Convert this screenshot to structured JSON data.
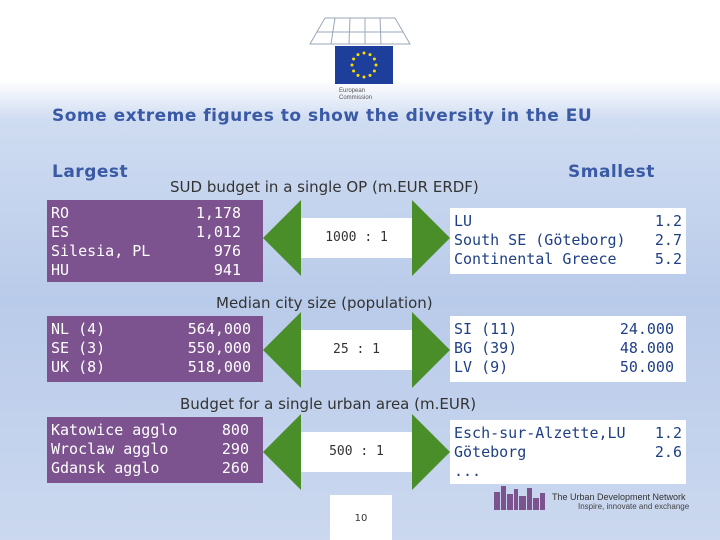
{
  "logo": {
    "text_line1": "European",
    "text_line2": "Commission",
    "flag_color": "#1d3e9b",
    "star_color": "#ffdd00"
  },
  "title": "Some extreme figures to show the diversity in the EU",
  "headings": {
    "largest": "Largest",
    "smallest": "Smallest"
  },
  "sections": [
    {
      "title": "SUD budget in a single OP (m.EUR ERDF)",
      "ratio": "1000 : 1",
      "largest": {
        "names": [
          "RO",
          "ES",
          "Silesia, PL",
          "HU"
        ],
        "values": [
          "1,178",
          "1,012",
          "976",
          "941"
        ]
      },
      "smallest": {
        "rows": [
          [
            "LU",
            "1.2"
          ],
          [
            "South SE (Göteborg)",
            "2.7"
          ],
          [
            "Continental Greece",
            "5.2"
          ]
        ]
      }
    },
    {
      "title": "Median city size (population)",
      "ratio": "25 : 1",
      "largest": {
        "names": [
          "NL (4)",
          "SE (3)",
          "UK (8)"
        ],
        "values": [
          "564,000",
          "550,000",
          "518,000"
        ]
      },
      "smallest": {
        "names": [
          "SI (11)",
          "BG (39)",
          "LV (9)"
        ],
        "values": [
          "24.000",
          "48.000",
          "50.000"
        ]
      }
    },
    {
      "title": "Budget for a single urban area (m.EUR)",
      "ratio": "500 : 1",
      "largest": {
        "names": [
          "Katowice agglo",
          "Wroclaw agglo",
          "Gdansk agglo"
        ],
        "values": [
          "800",
          "290",
          "260"
        ]
      },
      "smallest": {
        "rows": [
          [
            "Esch-sur-Alzette,LU",
            "1.2"
          ],
          [
            "Göteborg",
            "2.6"
          ],
          [
            "...",
            ""
          ]
        ]
      }
    }
  ],
  "footer": {
    "page_number": "10",
    "network_title": "The Urban Development Network",
    "network_tagline": "Inspire, innovate and exchange"
  },
  "colors": {
    "accent": "#3b5aa5",
    "purple": "#7c528f",
    "arrow": "#4a8e2a"
  }
}
